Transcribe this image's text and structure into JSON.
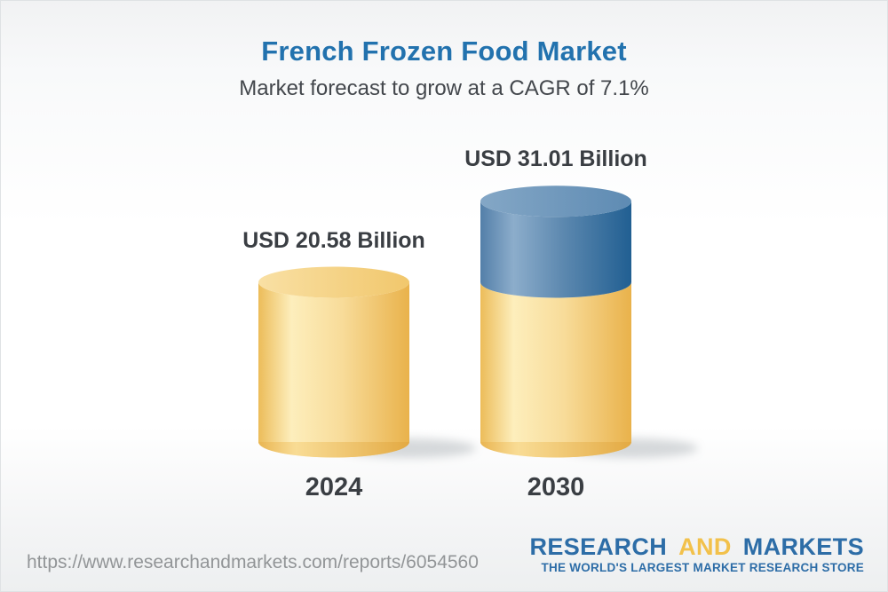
{
  "header": {
    "title": "French Frozen Food Market",
    "subtitle": "Market forecast to grow at a CAGR of 7.1%"
  },
  "chart_data": {
    "type": "bar",
    "variant": "3d-cylinder",
    "title": "French Frozen Food Market",
    "subtitle": "Market forecast to grow at a CAGR of 7.1%",
    "cagr_percent": 7.1,
    "unit": "USD Billion",
    "categories": [
      "2024",
      "2030"
    ],
    "values": [
      20.58,
      31.01
    ],
    "value_labels": [
      "USD 20.58 Billion",
      "USD 31.01 Billion"
    ],
    "bars": [
      {
        "category": "2024",
        "label": "USD 20.58 Billion",
        "segments": [
          {
            "id": "base",
            "value": 20.58
          }
        ]
      },
      {
        "category": "2030",
        "label": "USD 31.01 Billion",
        "segments": [
          {
            "id": "base",
            "value": 20.58
          },
          {
            "id": "growth",
            "value": 10.43
          }
        ]
      }
    ],
    "colors": {
      "base_segment": "#f5cf7e",
      "growth_segment": "#4a7aa8"
    },
    "legend": "none",
    "gridlines": false
  },
  "footer": {
    "url": "https://www.researchandmarkets.com/reports/6054560",
    "logo": {
      "word1": "RESEARCH",
      "word2": "AND",
      "word3": "MARKETS",
      "tagline": "THE WORLD'S LARGEST MARKET RESEARCH STORE",
      "brand_blue": "#2d6da7",
      "brand_gold": "#f2c14b"
    }
  },
  "theme": {
    "title_color": "#2272ae",
    "subtitle_color": "#43474c",
    "label_color": "#3a3e43",
    "url_color": "#929597"
  }
}
